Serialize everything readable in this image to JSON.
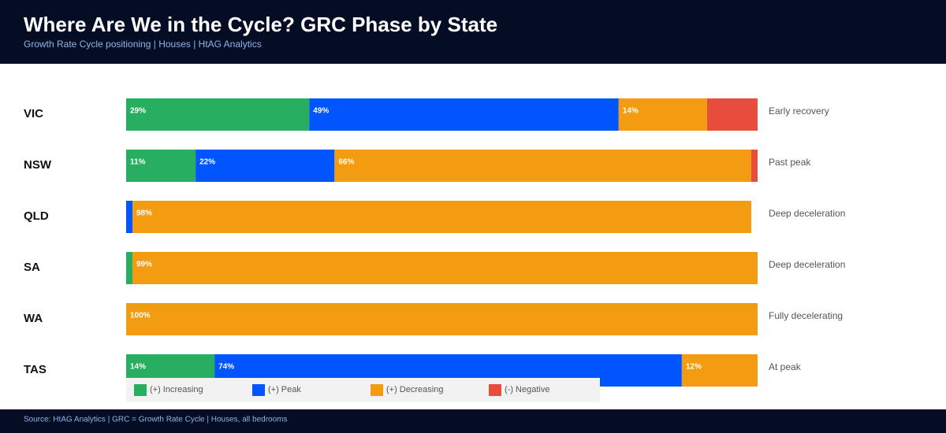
{
  "chart_data": {
    "type": "stacked-bar-horizontal",
    "title": "Where Are We in the Cycle? GRC Phase by State",
    "subtitle": "Growth Rate Cycle positioning  |  Houses  |  HtAG Analytics",
    "categories": [
      "VIC",
      "NSW",
      "QLD",
      "SA",
      "WA",
      "TAS"
    ],
    "annotations": [
      "Early recovery",
      "Past peak",
      "Deep deceleration",
      "Deep deceleration",
      "Fully decelerating",
      "At peak"
    ],
    "xlim": [
      0,
      100
    ],
    "series": [
      {
        "name": "(+) Increasing",
        "color": "#27ae60",
        "values": [
          29,
          11,
          0,
          1,
          0,
          14
        ],
        "value_labels": [
          "29%",
          "11%",
          null,
          null,
          null,
          "14%"
        ]
      },
      {
        "name": "(+) Peak",
        "color": "#0055ff",
        "values": [
          49,
          22,
          1,
          0,
          0,
          74
        ],
        "value_labels": [
          "49%",
          "22%",
          null,
          null,
          null,
          "74%"
        ]
      },
      {
        "name": "(+) Decreasing",
        "color": "#f39c12",
        "values": [
          14,
          66,
          98,
          99,
          100,
          12
        ],
        "value_labels": [
          "14%",
          "66%",
          "98%",
          "99%",
          "100%",
          "12%"
        ]
      },
      {
        "name": "(-) Negative",
        "color": "#e74c3c",
        "values": [
          8,
          1,
          0,
          0,
          0,
          0
        ],
        "value_labels": [
          null,
          null,
          null,
          null,
          null,
          null
        ]
      }
    ],
    "footer": "Source: HtAG Analytics  |  GRC = Growth Rate Cycle  |  Houses, all bedrooms"
  }
}
